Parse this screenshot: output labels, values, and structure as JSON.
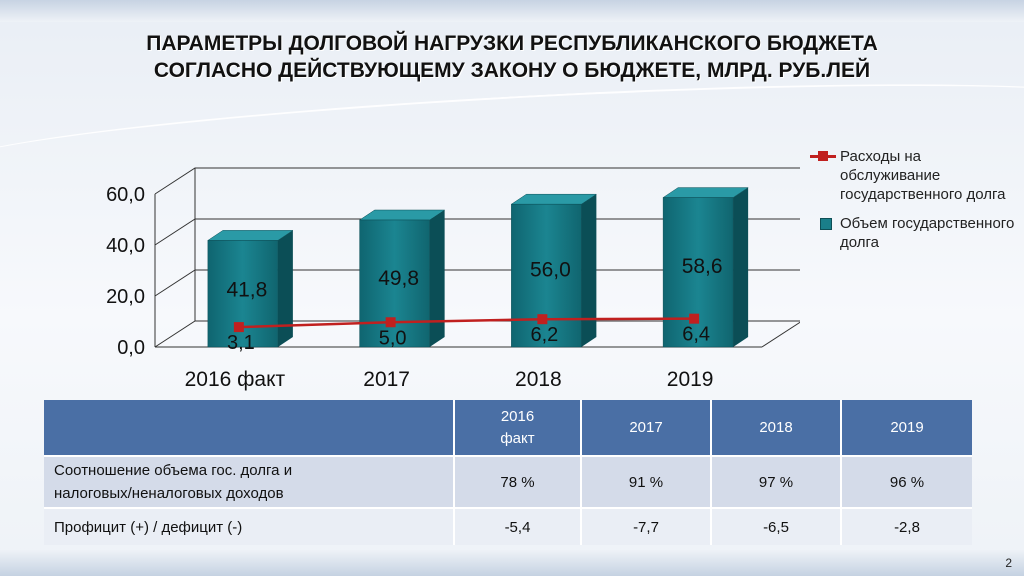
{
  "title": {
    "line1": "ПАРАМЕТРЫ ДОЛГОВОЙ НАГРУЗКИ РЕСПУБЛИКАНСКОГО БЮДЖЕТА",
    "line2": "СОГЛАСНО ДЕЙСТВУЮЩЕМУ ЗАКОНУ О БЮДЖЕТЕ, МЛРД. РУБ.ЛЕЙ"
  },
  "chart_data": {
    "type": "bar",
    "categories": [
      "2016 факт",
      "2017",
      "2018",
      "2019"
    ],
    "ylim": [
      0,
      60
    ],
    "yticks": [
      "0,0",
      "20,0",
      "40,0",
      "60,0"
    ],
    "series": [
      {
        "name": "Объем государственного долга",
        "kind": "bar",
        "color": "#1a7f8a",
        "values": [
          41.8,
          49.8,
          56.0,
          58.6
        ],
        "labels": [
          "41,8",
          "49,8",
          "56,0",
          "58,6"
        ]
      },
      {
        "name": "Расходы на обслуживание государственного долга",
        "kind": "line",
        "color": "#c0201f",
        "values": [
          3.1,
          5.0,
          6.2,
          6.4
        ],
        "labels": [
          "3,1",
          "5,0",
          "6,2",
          "6,4"
        ]
      }
    ],
    "legend_position": "right"
  },
  "legend": {
    "line_series": "Расходы на обслуживание государственного долга",
    "bar_series": "Объем государственного долга"
  },
  "table": {
    "headers": [
      "2016 факт",
      "2017",
      "2018",
      "2019"
    ],
    "rows": [
      {
        "label": "Соотношение объема гос. долга и налоговых/неналоговых доходов",
        "values": [
          "78 %",
          "91 %",
          "97 %",
          "96 %"
        ]
      },
      {
        "label": "Профицит (+) / дефицит (-)",
        "values": [
          "-5,4",
          "-7,7",
          "-6,5",
          "-2,8"
        ]
      }
    ]
  },
  "page_number": "2"
}
